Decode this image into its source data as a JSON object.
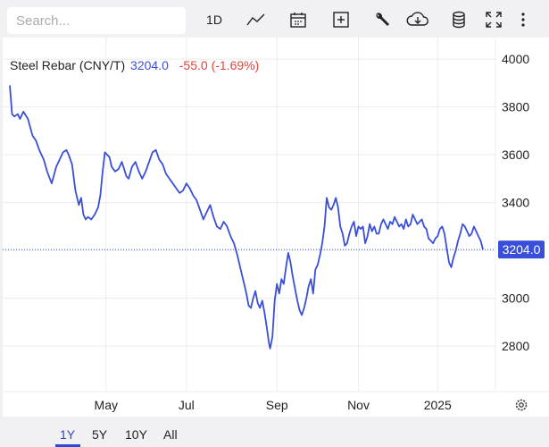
{
  "toolbar": {
    "search_placeholder": "Search...",
    "interval_label": "1D"
  },
  "legend": {
    "name": "Steel Rebar (CNY/T)",
    "price": "3204.0",
    "change": "-55.0 (-1.69%)"
  },
  "colors": {
    "line": "#3a4fd9",
    "negative": "#e0443e",
    "accent": "#2f47d8",
    "grid": "#ececec"
  },
  "ranges": [
    "1Y",
    "5Y",
    "10Y",
    "All"
  ],
  "active_range": "1Y",
  "chart_data": {
    "type": "line",
    "title": "Steel Rebar (CNY/T)",
    "xlabel": "",
    "ylabel": "",
    "ylim": [
      2610,
      4090
    ],
    "yticks": [
      2800,
      3000,
      3200,
      3400,
      3600,
      3800,
      4000
    ],
    "xticks": [
      "May",
      "Jul",
      "Sep",
      "Nov",
      "2025"
    ],
    "last_value": 3204.0,
    "last_value_label": "3204.0",
    "grid": true,
    "series": [
      {
        "name": "Steel Rebar (CNY/T)",
        "points": [
          [
            0,
            3890
          ],
          [
            2,
            3770
          ],
          [
            4,
            3760
          ],
          [
            7,
            3770
          ],
          [
            9,
            3750
          ],
          [
            12,
            3780
          ],
          [
            16,
            3750
          ],
          [
            20,
            3680
          ],
          [
            23,
            3660
          ],
          [
            26,
            3620
          ],
          [
            30,
            3580
          ],
          [
            33,
            3530
          ],
          [
            37,
            3480
          ],
          [
            41,
            3550
          ],
          [
            44,
            3580
          ],
          [
            47,
            3610
          ],
          [
            50,
            3620
          ],
          [
            52,
            3600
          ],
          [
            55,
            3560
          ],
          [
            58,
            3450
          ],
          [
            61,
            3390
          ],
          [
            63,
            3420
          ],
          [
            65,
            3350
          ],
          [
            67,
            3330
          ],
          [
            69,
            3340
          ],
          [
            72,
            3330
          ],
          [
            75,
            3350
          ],
          [
            78,
            3380
          ],
          [
            80,
            3430
          ],
          [
            82,
            3530
          ],
          [
            84,
            3610
          ],
          [
            86,
            3600
          ],
          [
            88,
            3590
          ],
          [
            90,
            3550
          ],
          [
            93,
            3530
          ],
          [
            96,
            3540
          ],
          [
            99,
            3570
          ],
          [
            101,
            3540
          ],
          [
            103,
            3510
          ],
          [
            105,
            3500
          ],
          [
            108,
            3550
          ],
          [
            111,
            3570
          ],
          [
            114,
            3530
          ],
          [
            117,
            3500
          ],
          [
            120,
            3530
          ],
          [
            123,
            3570
          ],
          [
            126,
            3610
          ],
          [
            129,
            3620
          ],
          [
            132,
            3580
          ],
          [
            135,
            3560
          ],
          [
            138,
            3520
          ],
          [
            141,
            3500
          ],
          [
            144,
            3480
          ],
          [
            147,
            3460
          ],
          [
            150,
            3440
          ],
          [
            153,
            3450
          ],
          [
            156,
            3480
          ],
          [
            159,
            3460
          ],
          [
            162,
            3430
          ],
          [
            165,
            3410
          ],
          [
            168,
            3370
          ],
          [
            171,
            3330
          ],
          [
            174,
            3360
          ],
          [
            177,
            3390
          ],
          [
            180,
            3340
          ],
          [
            183,
            3300
          ],
          [
            186,
            3290
          ],
          [
            189,
            3320
          ],
          [
            192,
            3300
          ],
          [
            195,
            3260
          ],
          [
            198,
            3230
          ],
          [
            201,
            3180
          ],
          [
            203,
            3140
          ],
          [
            205,
            3100
          ],
          [
            207,
            3060
          ],
          [
            209,
            3020
          ],
          [
            211,
            2970
          ],
          [
            213,
            2960
          ],
          [
            215,
            3000
          ],
          [
            217,
            3030
          ],
          [
            219,
            2980
          ],
          [
            221,
            2960
          ],
          [
            223,
            2990
          ],
          [
            225,
            2940
          ],
          [
            227,
            2880
          ],
          [
            229,
            2810
          ],
          [
            230,
            2790
          ],
          [
            232,
            2840
          ],
          [
            234,
            2990
          ],
          [
            236,
            3060
          ],
          [
            238,
            3020
          ],
          [
            240,
            3080
          ],
          [
            242,
            3060
          ],
          [
            244,
            3130
          ],
          [
            246,
            3190
          ],
          [
            248,
            3150
          ],
          [
            250,
            3090
          ],
          [
            252,
            3040
          ],
          [
            254,
            2990
          ],
          [
            256,
            2950
          ],
          [
            258,
            2930
          ],
          [
            260,
            2960
          ],
          [
            262,
            3000
          ],
          [
            264,
            3050
          ],
          [
            266,
            3080
          ],
          [
            268,
            3020
          ],
          [
            270,
            3120
          ],
          [
            272,
            3140
          ],
          [
            274,
            3180
          ],
          [
            276,
            3230
          ],
          [
            278,
            3300
          ],
          [
            280,
            3420
          ],
          [
            282,
            3380
          ],
          [
            284,
            3370
          ],
          [
            286,
            3390
          ],
          [
            288,
            3420
          ],
          [
            290,
            3380
          ],
          [
            292,
            3300
          ],
          [
            294,
            3270
          ],
          [
            296,
            3220
          ],
          [
            298,
            3230
          ],
          [
            300,
            3270
          ],
          [
            302,
            3300
          ],
          [
            304,
            3320
          ],
          [
            306,
            3260
          ],
          [
            308,
            3300
          ],
          [
            310,
            3290
          ],
          [
            312,
            3300
          ],
          [
            314,
            3230
          ],
          [
            316,
            3260
          ],
          [
            318,
            3310
          ],
          [
            320,
            3280
          ],
          [
            322,
            3300
          ],
          [
            324,
            3270
          ],
          [
            326,
            3270
          ],
          [
            328,
            3310
          ],
          [
            330,
            3330
          ],
          [
            332,
            3310
          ],
          [
            334,
            3290
          ],
          [
            336,
            3320
          ],
          [
            338,
            3310
          ],
          [
            340,
            3340
          ],
          [
            342,
            3320
          ],
          [
            344,
            3300
          ],
          [
            346,
            3310
          ],
          [
            348,
            3290
          ],
          [
            350,
            3330
          ],
          [
            352,
            3300
          ],
          [
            354,
            3310
          ],
          [
            356,
            3350
          ],
          [
            358,
            3330
          ],
          [
            360,
            3310
          ],
          [
            362,
            3320
          ],
          [
            364,
            3330
          ],
          [
            366,
            3300
          ],
          [
            368,
            3290
          ],
          [
            370,
            3250
          ],
          [
            372,
            3240
          ],
          [
            374,
            3230
          ],
          [
            376,
            3250
          ],
          [
            378,
            3260
          ],
          [
            380,
            3290
          ],
          [
            382,
            3300
          ],
          [
            384,
            3270
          ],
          [
            386,
            3210
          ],
          [
            388,
            3150
          ],
          [
            390,
            3130
          ],
          [
            392,
            3170
          ],
          [
            394,
            3200
          ],
          [
            396,
            3240
          ],
          [
            398,
            3270
          ],
          [
            400,
            3310
          ],
          [
            402,
            3300
          ],
          [
            404,
            3280
          ],
          [
            406,
            3260
          ],
          [
            408,
            3270
          ],
          [
            410,
            3300
          ],
          [
            412,
            3280
          ],
          [
            414,
            3260
          ],
          [
            416,
            3240
          ],
          [
            418,
            3204
          ]
        ]
      }
    ]
  }
}
